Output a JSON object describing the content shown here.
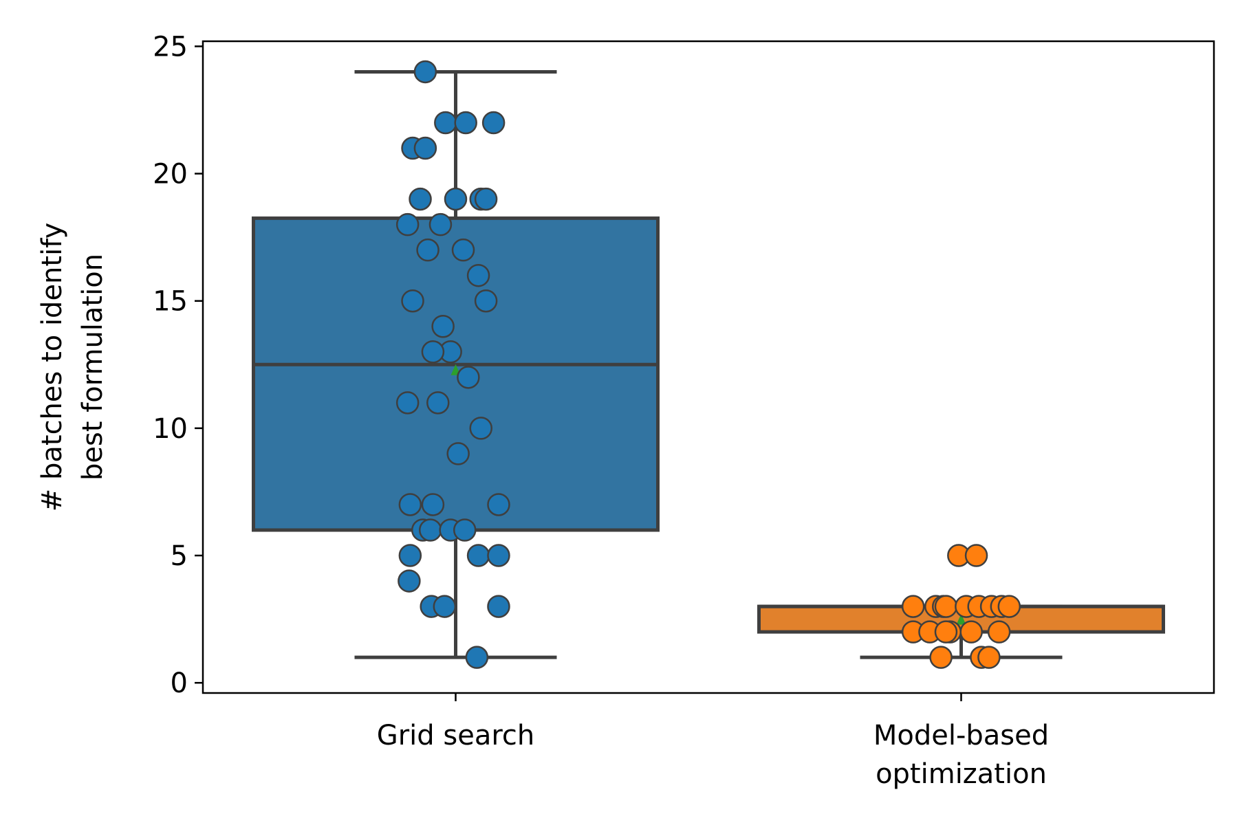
{
  "chart_data": {
    "type": "box",
    "ylabel_lines": [
      "# batches to identify",
      "best formulation"
    ],
    "categories": [
      {
        "lines": [
          "Grid search"
        ]
      },
      {
        "lines": [
          "Model-based",
          "optimization"
        ]
      }
    ],
    "ylim": [
      -0.4,
      25.2
    ],
    "yticks": [
      0,
      5,
      10,
      15,
      20,
      25
    ],
    "grid": false,
    "series": [
      {
        "color": "#1f77b4",
        "box_color": "#3274a1",
        "q1": 6,
        "median": 12.5,
        "q3": 18.25,
        "whisker_low": 1,
        "whisker_high": 24,
        "mean": 12.3,
        "points": [
          {
            "y": 24,
            "dx": -0.06
          },
          {
            "y": 22,
            "dx": -0.02
          },
          {
            "y": 22,
            "dx": 0.02
          },
          {
            "y": 22,
            "dx": 0.075
          },
          {
            "y": 21,
            "dx": -0.085
          },
          {
            "y": 21,
            "dx": -0.06
          },
          {
            "y": 19,
            "dx": -0.07
          },
          {
            "y": 19,
            "dx": 0.0
          },
          {
            "y": 19,
            "dx": 0.05
          },
          {
            "y": 19,
            "dx": 0.06
          },
          {
            "y": 18,
            "dx": -0.095
          },
          {
            "y": 18,
            "dx": -0.03
          },
          {
            "y": 17,
            "dx": -0.055
          },
          {
            "y": 17,
            "dx": 0.015
          },
          {
            "y": 16,
            "dx": 0.045
          },
          {
            "y": 15,
            "dx": -0.085
          },
          {
            "y": 15,
            "dx": 0.06
          },
          {
            "y": 14,
            "dx": -0.025
          },
          {
            "y": 13,
            "dx": -0.01
          },
          {
            "y": 13,
            "dx": -0.045
          },
          {
            "y": 12,
            "dx": 0.025
          },
          {
            "y": 11,
            "dx": -0.095
          },
          {
            "y": 11,
            "dx": -0.035
          },
          {
            "y": 10,
            "dx": 0.05
          },
          {
            "y": 9,
            "dx": 0.005
          },
          {
            "y": 7,
            "dx": -0.09
          },
          {
            "y": 7,
            "dx": -0.045
          },
          {
            "y": 7,
            "dx": 0.085
          },
          {
            "y": 6,
            "dx": -0.065
          },
          {
            "y": 6,
            "dx": -0.05
          },
          {
            "y": 6,
            "dx": -0.01
          },
          {
            "y": 6,
            "dx": 0.018
          },
          {
            "y": 5,
            "dx": -0.09
          },
          {
            "y": 5,
            "dx": 0.045
          },
          {
            "y": 5,
            "dx": 0.085
          },
          {
            "y": 4,
            "dx": -0.092
          },
          {
            "y": 3,
            "dx": -0.048
          },
          {
            "y": 3,
            "dx": -0.022
          },
          {
            "y": 3,
            "dx": 0.085
          },
          {
            "y": 1,
            "dx": 0.042
          }
        ]
      },
      {
        "color": "#ff7f0e",
        "box_color": "#e1812c",
        "q1": 2,
        "median": 3,
        "q3": 3,
        "whisker_low": 1,
        "whisker_high": 3,
        "mean": 2.5,
        "points": [
          {
            "y": 5,
            "dx": -0.005
          },
          {
            "y": 5,
            "dx": 0.03
          },
          {
            "y": 3,
            "dx": -0.095
          },
          {
            "y": 3,
            "dx": -0.05
          },
          {
            "y": 3,
            "dx": -0.035
          },
          {
            "y": 3,
            "dx": -0.03
          },
          {
            "y": 3,
            "dx": 0.01
          },
          {
            "y": 3,
            "dx": 0.035
          },
          {
            "y": 3,
            "dx": 0.06
          },
          {
            "y": 3,
            "dx": 0.08
          },
          {
            "y": 3,
            "dx": 0.095
          },
          {
            "y": 2,
            "dx": -0.095
          },
          {
            "y": 2,
            "dx": -0.062
          },
          {
            "y": 2,
            "dx": -0.022
          },
          {
            "y": 2,
            "dx": -0.03
          },
          {
            "y": 2,
            "dx": 0.02
          },
          {
            "y": 2,
            "dx": 0.075
          },
          {
            "y": 1,
            "dx": -0.04
          },
          {
            "y": 1,
            "dx": 0.04
          },
          {
            "y": 1,
            "dx": 0.055
          }
        ]
      }
    ],
    "mean_marker_color": "#2ca02c",
    "edge_color": "#3f3f3f"
  }
}
